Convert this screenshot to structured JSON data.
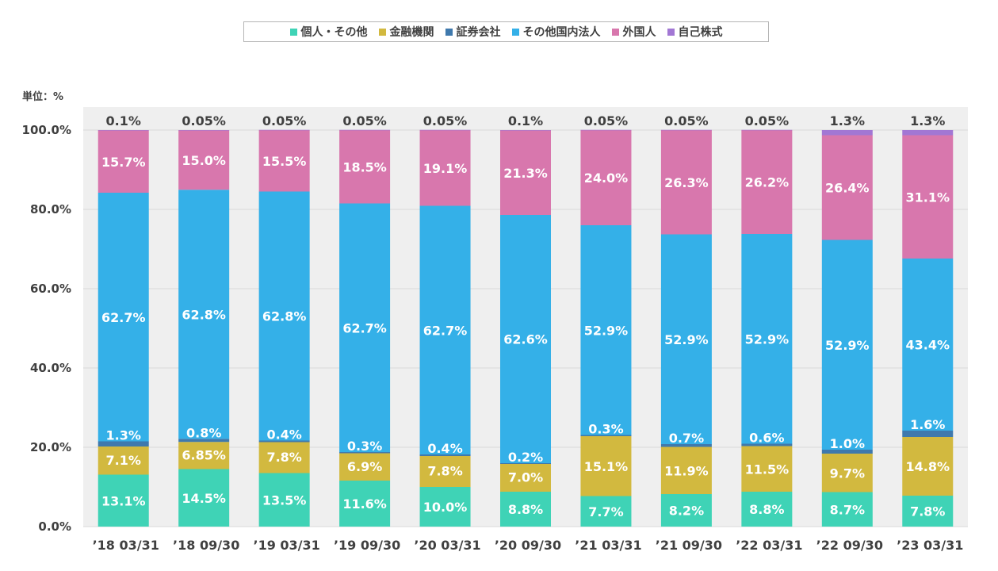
{
  "unit_label": "単位：%",
  "chart_data": {
    "type": "bar",
    "stacked": true,
    "ylim": [
      0,
      100
    ],
    "yticks": [
      "0.0%",
      "20.0%",
      "40.0%",
      "60.0%",
      "80.0%",
      "100.0%"
    ],
    "grid": true,
    "legend_position": "top",
    "categories": [
      "’18 03/31",
      "’18 09/30",
      "’19 03/31",
      "’19 09/30",
      "’20 03/31",
      "’20 09/30",
      "’21 03/31",
      "’21 09/30",
      "’22 03/31",
      "’22 09/30",
      "’23 03/31"
    ],
    "series": [
      {
        "name": "個人・その他",
        "color": "#3fd3b6",
        "values": [
          13.1,
          14.5,
          13.5,
          11.6,
          10.0,
          8.8,
          7.7,
          8.2,
          8.8,
          8.7,
          7.8
        ],
        "labels": [
          "13.1%",
          "14.5%",
          "13.5%",
          "11.6%",
          "10.0%",
          "8.8%",
          "7.7%",
          "8.2%",
          "8.8%",
          "8.7%",
          "7.8%"
        ]
      },
      {
        "name": "金融機関",
        "color": "#d2b93f",
        "values": [
          7.1,
          6.85,
          7.8,
          6.9,
          7.8,
          7.0,
          15.1,
          11.9,
          11.5,
          9.7,
          14.8
        ],
        "labels": [
          "7.1%",
          "6.85%",
          "7.8%",
          "6.9%",
          "7.8%",
          "7.0%",
          "15.1%",
          "11.9%",
          "11.5%",
          "9.7%",
          "14.8%"
        ]
      },
      {
        "name": "証券会社",
        "color": "#3f79ad",
        "values": [
          1.3,
          0.8,
          0.4,
          0.3,
          0.4,
          0.2,
          0.3,
          0.7,
          0.6,
          1.0,
          1.6
        ],
        "labels": [
          "1.3%",
          "0.8%",
          "0.4%",
          "0.3%",
          "0.4%",
          "0.2%",
          "0.3%",
          "0.7%",
          "0.6%",
          "1.0%",
          "1.6%"
        ]
      },
      {
        "name": "その他国内法人",
        "color": "#34b0e8",
        "values": [
          62.7,
          62.8,
          62.8,
          62.7,
          62.7,
          62.6,
          52.9,
          52.9,
          52.9,
          52.9,
          43.4
        ],
        "labels": [
          "62.7%",
          "62.8%",
          "62.8%",
          "62.7%",
          "62.7%",
          "62.6%",
          "52.9%",
          "52.9%",
          "52.9%",
          "52.9%",
          "43.4%"
        ]
      },
      {
        "name": "外国人",
        "color": "#d877ad",
        "values": [
          15.7,
          15.0,
          15.5,
          18.5,
          19.1,
          21.3,
          24.0,
          26.3,
          26.2,
          26.4,
          31.1
        ],
        "labels": [
          "15.7%",
          "15.0%",
          "15.5%",
          "18.5%",
          "19.1%",
          "21.3%",
          "24.0%",
          "26.3%",
          "26.2%",
          "26.4%",
          "31.1%"
        ]
      },
      {
        "name": "自己株式",
        "color": "#a277d4",
        "values": [
          0.1,
          0.05,
          0.05,
          0.05,
          0.05,
          0.1,
          0.05,
          0.05,
          0.05,
          1.3,
          1.3
        ],
        "labels": [
          "0.1%",
          "0.05%",
          "0.05%",
          "0.05%",
          "0.05%",
          "0.1%",
          "0.05%",
          "0.05%",
          "0.05%",
          "1.3%",
          "1.3%"
        ]
      }
    ]
  }
}
